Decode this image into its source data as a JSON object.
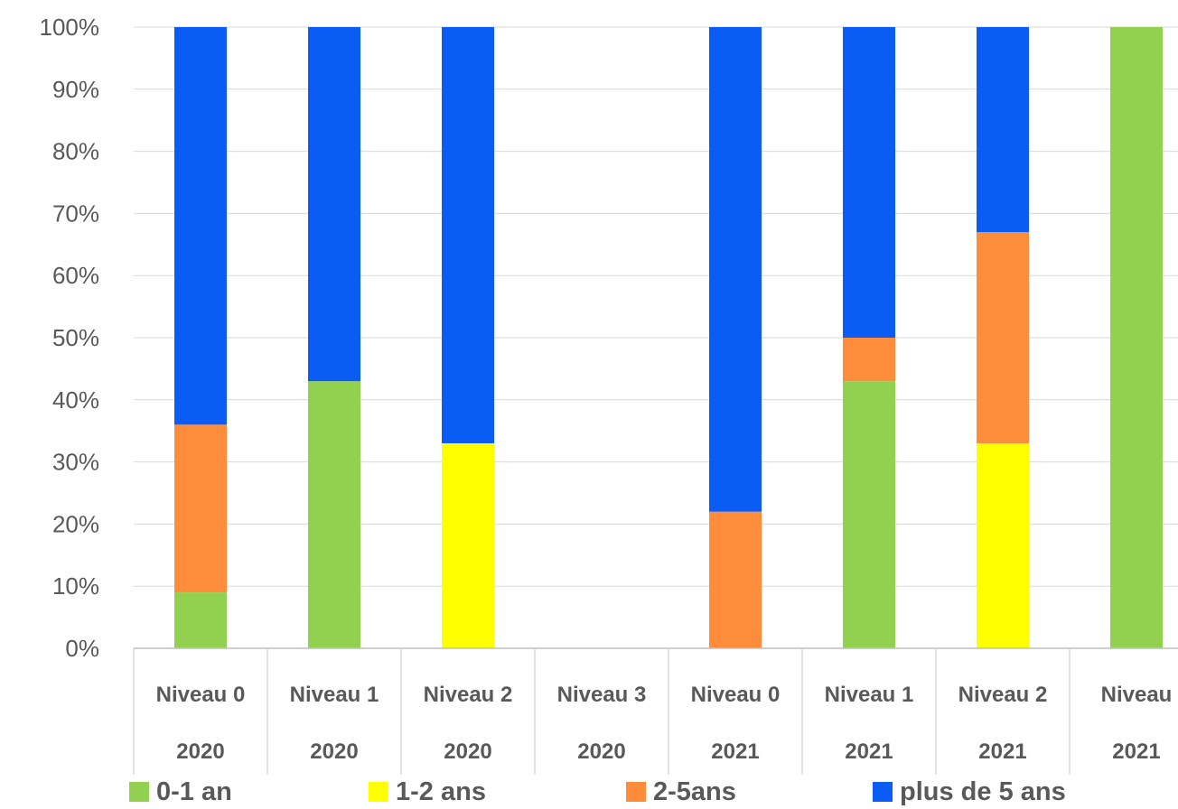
{
  "chart_data": {
    "type": "bar",
    "stacked": true,
    "percent": true,
    "categories": [
      {
        "level": "Niveau 0",
        "year": "2020"
      },
      {
        "level": "Niveau 1",
        "year": "2020"
      },
      {
        "level": "Niveau 2",
        "year": "2020"
      },
      {
        "level": "Niveau 3",
        "year": "2020"
      },
      {
        "level": "Niveau 0",
        "year": "2021"
      },
      {
        "level": "Niveau 1",
        "year": "2021"
      },
      {
        "level": "Niveau 2",
        "year": "2021"
      },
      {
        "level": "Niveau",
        "year": "2021"
      }
    ],
    "series": [
      {
        "name": "0-1 an",
        "color": "#92d050",
        "values": [
          9,
          43,
          0,
          0,
          0,
          43,
          0,
          100
        ]
      },
      {
        "name": "1-2 ans",
        "color": "#ffff00",
        "values": [
          0,
          0,
          33,
          0,
          0,
          0,
          33,
          0
        ]
      },
      {
        "name": "2-5ans",
        "color": "#ff8c3a",
        "values": [
          27,
          0,
          0,
          0,
          22,
          7,
          34,
          0
        ]
      },
      {
        "name": "plus de 5 ans",
        "color": "#0a5cf5",
        "values": [
          64,
          57,
          67,
          0,
          78,
          50,
          33,
          0
        ]
      }
    ],
    "y_ticks": [
      "0%",
      "10%",
      "20%",
      "30%",
      "40%",
      "50%",
      "60%",
      "70%",
      "80%",
      "90%",
      "100%"
    ],
    "ylim": [
      0,
      100
    ],
    "grid": true,
    "legend_position": "bottom"
  }
}
